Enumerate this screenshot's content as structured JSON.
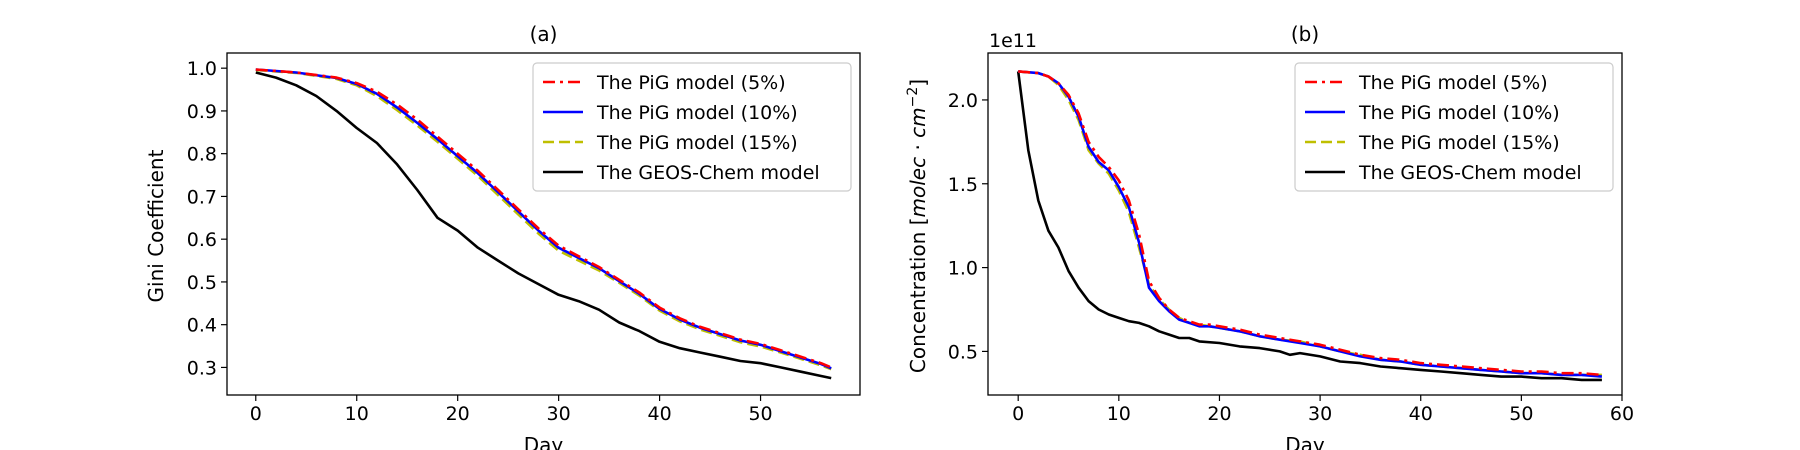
{
  "chart_data": [
    {
      "type": "line",
      "title": "(a)",
      "xlabel": "Day",
      "ylabel": "Gini Coefficient",
      "offset_label": "",
      "xlim": [
        -2.85,
        59.85
      ],
      "ylim": [
        0.2355,
        1.0355
      ],
      "xticks": [
        0,
        10,
        20,
        30,
        40,
        50
      ],
      "yticks": [
        0.3,
        0.4,
        0.5,
        0.6,
        0.7,
        0.8,
        0.9,
        1.0
      ],
      "ytick_labels": [
        "0.3",
        "0.4",
        "0.5",
        "0.6",
        "0.7",
        "0.8",
        "0.9",
        "1.0"
      ],
      "grid": false,
      "legend_position": "upper right",
      "series": [
        {
          "name": "The PiG model (5%)",
          "color": "#ff0000",
          "dash": "dashdot",
          "x": [
            0,
            4,
            8,
            10,
            12,
            14,
            16,
            18,
            20,
            22,
            24,
            26,
            28,
            30,
            32,
            34,
            36,
            38,
            40,
            42,
            44,
            46,
            48,
            50,
            52,
            54,
            56,
            57
          ],
          "y": [
            0.997,
            0.99,
            0.978,
            0.965,
            0.945,
            0.915,
            0.88,
            0.84,
            0.8,
            0.76,
            0.715,
            0.67,
            0.625,
            0.585,
            0.56,
            0.535,
            0.505,
            0.475,
            0.44,
            0.415,
            0.395,
            0.38,
            0.365,
            0.355,
            0.34,
            0.325,
            0.31,
            0.3
          ]
        },
        {
          "name": "The PiG model (10%)",
          "color": "#0000ff",
          "dash": "solid",
          "x": [
            0,
            4,
            8,
            10,
            12,
            14,
            16,
            18,
            20,
            22,
            24,
            26,
            28,
            30,
            32,
            34,
            36,
            38,
            40,
            42,
            44,
            46,
            48,
            50,
            52,
            54,
            56,
            57
          ],
          "y": [
            0.997,
            0.99,
            0.977,
            0.963,
            0.94,
            0.908,
            0.872,
            0.834,
            0.794,
            0.754,
            0.71,
            0.665,
            0.62,
            0.58,
            0.556,
            0.532,
            0.502,
            0.472,
            0.437,
            0.412,
            0.393,
            0.378,
            0.363,
            0.353,
            0.338,
            0.323,
            0.308,
            0.298
          ]
        },
        {
          "name": "The PiG model (15%)",
          "color": "#bfbf00",
          "dash": "dashed",
          "x": [
            0,
            4,
            8,
            10,
            12,
            14,
            16,
            18,
            20,
            22,
            24,
            26,
            28,
            30,
            32,
            34,
            36,
            38,
            40,
            42,
            44,
            46,
            48,
            50,
            52,
            54,
            56,
            57
          ],
          "y": [
            0.996,
            0.989,
            0.975,
            0.96,
            0.935,
            0.902,
            0.866,
            0.828,
            0.788,
            0.748,
            0.703,
            0.658,
            0.613,
            0.573,
            0.55,
            0.527,
            0.498,
            0.468,
            0.433,
            0.408,
            0.389,
            0.374,
            0.359,
            0.349,
            0.335,
            0.32,
            0.305,
            0.296
          ]
        },
        {
          "name": "The GEOS-Chem model",
          "color": "#000000",
          "dash": "solid",
          "x": [
            0,
            2,
            4,
            6,
            8,
            10,
            12,
            14,
            16,
            18,
            20,
            22,
            24,
            26,
            28,
            30,
            32,
            34,
            36,
            38,
            40,
            42,
            44,
            46,
            48,
            50,
            52,
            54,
            56,
            57
          ],
          "y": [
            0.99,
            0.978,
            0.96,
            0.935,
            0.9,
            0.86,
            0.825,
            0.775,
            0.715,
            0.65,
            0.62,
            0.58,
            0.55,
            0.52,
            0.495,
            0.47,
            0.455,
            0.435,
            0.405,
            0.385,
            0.36,
            0.345,
            0.335,
            0.325,
            0.315,
            0.31,
            0.3,
            0.29,
            0.28,
            0.275
          ]
        }
      ]
    },
    {
      "type": "line",
      "title": "(b)",
      "xlabel": "Day",
      "ylabel": "Concentration [molec·cm⁻²]",
      "offset_label": "1e11",
      "xlim": [
        -3.0,
        60.0
      ],
      "ylim": [
        0.24,
        2.28
      ],
      "xticks": [
        0,
        10,
        20,
        30,
        40,
        50,
        60
      ],
      "yticks": [
        0.5,
        1.0,
        1.5,
        2.0
      ],
      "ytick_labels": [
        "0.5",
        "1.0",
        "1.5",
        "2.0"
      ],
      "grid": false,
      "legend_position": "upper right",
      "series": [
        {
          "name": "The PiG model (5%)",
          "color": "#ff0000",
          "dash": "dashdot",
          "x": [
            0,
            2,
            3,
            4,
            5,
            6,
            7,
            8,
            9,
            10,
            11,
            12,
            13,
            14,
            15,
            16,
            17,
            18,
            19,
            20,
            22,
            24,
            25,
            26,
            28,
            30,
            32,
            34,
            36,
            38,
            40,
            42,
            44,
            46,
            48,
            50,
            52,
            54,
            56,
            58
          ],
          "y": [
            2.17,
            2.16,
            2.14,
            2.1,
            2.03,
            1.92,
            1.75,
            1.66,
            1.6,
            1.52,
            1.4,
            1.2,
            0.92,
            0.82,
            0.75,
            0.7,
            0.68,
            0.66,
            0.66,
            0.65,
            0.63,
            0.6,
            0.59,
            0.58,
            0.56,
            0.54,
            0.51,
            0.48,
            0.46,
            0.45,
            0.43,
            0.42,
            0.41,
            0.4,
            0.39,
            0.38,
            0.38,
            0.37,
            0.37,
            0.36
          ]
        },
        {
          "name": "The PiG model (10%)",
          "color": "#0000ff",
          "dash": "solid",
          "x": [
            0,
            2,
            3,
            4,
            5,
            6,
            7,
            8,
            9,
            10,
            11,
            12,
            13,
            14,
            15,
            16,
            17,
            18,
            19,
            20,
            22,
            24,
            25,
            26,
            28,
            30,
            32,
            34,
            36,
            38,
            40,
            42,
            44,
            46,
            48,
            50,
            52,
            54,
            56,
            58
          ],
          "y": [
            2.17,
            2.16,
            2.14,
            2.1,
            2.02,
            1.9,
            1.72,
            1.63,
            1.58,
            1.48,
            1.36,
            1.15,
            0.88,
            0.8,
            0.74,
            0.69,
            0.67,
            0.65,
            0.65,
            0.64,
            0.62,
            0.59,
            0.58,
            0.57,
            0.55,
            0.53,
            0.5,
            0.47,
            0.45,
            0.44,
            0.42,
            0.41,
            0.4,
            0.39,
            0.38,
            0.37,
            0.37,
            0.36,
            0.36,
            0.35
          ]
        },
        {
          "name": "The PiG model (15%)",
          "color": "#bfbf00",
          "dash": "dashed",
          "x": [
            0,
            2,
            3,
            4,
            5,
            6,
            7,
            8,
            9,
            10,
            11,
            12,
            13,
            14,
            15,
            16,
            17,
            18,
            19,
            20,
            22,
            24,
            25,
            26,
            28,
            30,
            32,
            34,
            36,
            38,
            40,
            42,
            44,
            46,
            48,
            50,
            52,
            54,
            56,
            58
          ],
          "y": [
            2.17,
            2.16,
            2.14,
            2.09,
            2.0,
            1.88,
            1.7,
            1.62,
            1.56,
            1.46,
            1.33,
            1.12,
            0.9,
            0.81,
            0.75,
            0.7,
            0.67,
            0.66,
            0.65,
            0.64,
            0.62,
            0.59,
            0.58,
            0.57,
            0.56,
            0.53,
            0.5,
            0.48,
            0.45,
            0.44,
            0.42,
            0.41,
            0.4,
            0.39,
            0.38,
            0.37,
            0.37,
            0.36,
            0.36,
            0.36
          ]
        },
        {
          "name": "The GEOS-Chem model",
          "color": "#000000",
          "dash": "solid",
          "x": [
            0,
            1,
            2,
            3,
            4,
            5,
            6,
            7,
            8,
            9,
            10,
            11,
            12,
            13,
            14,
            15,
            16,
            17,
            18,
            20,
            22,
            24,
            26,
            27,
            28,
            30,
            32,
            34,
            36,
            38,
            40,
            42,
            44,
            46,
            48,
            50,
            52,
            54,
            56,
            58
          ],
          "y": [
            2.17,
            1.7,
            1.4,
            1.22,
            1.12,
            0.98,
            0.88,
            0.8,
            0.75,
            0.72,
            0.7,
            0.68,
            0.67,
            0.65,
            0.62,
            0.6,
            0.58,
            0.58,
            0.56,
            0.55,
            0.53,
            0.52,
            0.5,
            0.48,
            0.49,
            0.47,
            0.44,
            0.43,
            0.41,
            0.4,
            0.39,
            0.38,
            0.37,
            0.36,
            0.35,
            0.35,
            0.34,
            0.34,
            0.33,
            0.33
          ]
        }
      ]
    }
  ]
}
